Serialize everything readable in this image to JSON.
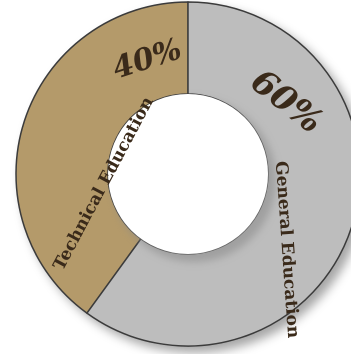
{
  "chart_data": {
    "type": "pie",
    "style": "donut",
    "title": "",
    "slices": [
      {
        "label": "Technical Education",
        "value": 40,
        "value_label": "40%",
        "color": "#b49a6b"
      },
      {
        "label": "General Education",
        "value": 60,
        "value_label": "60%",
        "color": "#bdbdbd"
      }
    ],
    "outline_color": "#3a3a3a",
    "label_color": "#3a2a1a"
  }
}
